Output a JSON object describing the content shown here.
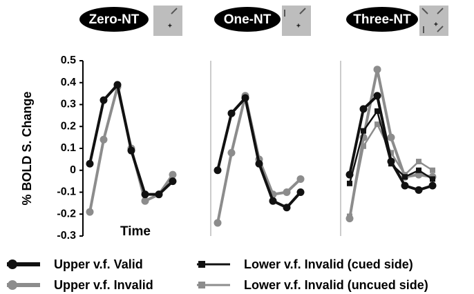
{
  "chart_data": [
    {
      "type": "line",
      "title": "Zero-NT",
      "ylabel": "% BOLD S. Change",
      "xlabel": "Time",
      "categories": [
        null,
        null,
        null,
        null,
        null,
        null,
        null
      ],
      "ylim": [
        -0.3,
        0.5
      ],
      "yticks": [
        0.5,
        0.4,
        0.3,
        0.2,
        0.1,
        0,
        -0.1,
        -0.2,
        -0.3
      ],
      "grid": false,
      "series": [
        {
          "name": "Upper v.f. Valid",
          "color": "#111111",
          "marker": "circle",
          "values": [
            0.03,
            0.32,
            0.39,
            0.09,
            -0.11,
            -0.11,
            -0.05
          ]
        },
        {
          "name": "Upper v.f. Invalid",
          "color": "#8c8c8c",
          "marker": "circle",
          "values": [
            -0.19,
            0.14,
            0.38,
            0.1,
            -0.14,
            -0.11,
            -0.02
          ]
        }
      ]
    },
    {
      "type": "line",
      "title": "One-NT",
      "categories": [
        null,
        null,
        null,
        null,
        null,
        null,
        null
      ],
      "ylim": [
        -0.3,
        0.5
      ],
      "grid": false,
      "series": [
        {
          "name": "Upper v.f. Valid",
          "color": "#111111",
          "marker": "circle",
          "values": [
            0,
            0.26,
            0.33,
            0.03,
            -0.14,
            -0.17,
            -0.1
          ]
        },
        {
          "name": "Upper v.f. Invalid",
          "color": "#8c8c8c",
          "marker": "circle",
          "values": [
            -0.24,
            0.08,
            0.34,
            0.05,
            -0.11,
            -0.1,
            -0.04
          ]
        }
      ]
    },
    {
      "type": "line",
      "title": "Three-NT",
      "categories": [
        null,
        null,
        null,
        null,
        null,
        null,
        null
      ],
      "ylim": [
        -0.3,
        0.5
      ],
      "grid": false,
      "series": [
        {
          "name": "Upper v.f. Valid",
          "color": "#111111",
          "marker": "circle",
          "values": [
            -0.02,
            0.28,
            0.34,
            0.04,
            -0.07,
            -0.09,
            -0.07
          ]
        },
        {
          "name": "Upper v.f. Invalid",
          "color": "#8c8c8c",
          "marker": "circle",
          "values": [
            -0.22,
            0.15,
            0.46,
            0.15,
            -0.03,
            -0.02,
            -0.03
          ]
        },
        {
          "name": "Lower v.f. Invalid (cued side)",
          "color": "#111111",
          "marker": "square",
          "values": [
            -0.06,
            0.18,
            0.27,
            0.03,
            -0.03,
            0,
            -0.04
          ]
        },
        {
          "name": "Lower v.f. Invalid (uncued side)",
          "color": "#8c8c8c",
          "marker": "square",
          "values": [
            -0.21,
            0.11,
            0.21,
            0.08,
            -0.02,
            0.04,
            0
          ]
        }
      ]
    }
  ]
}
